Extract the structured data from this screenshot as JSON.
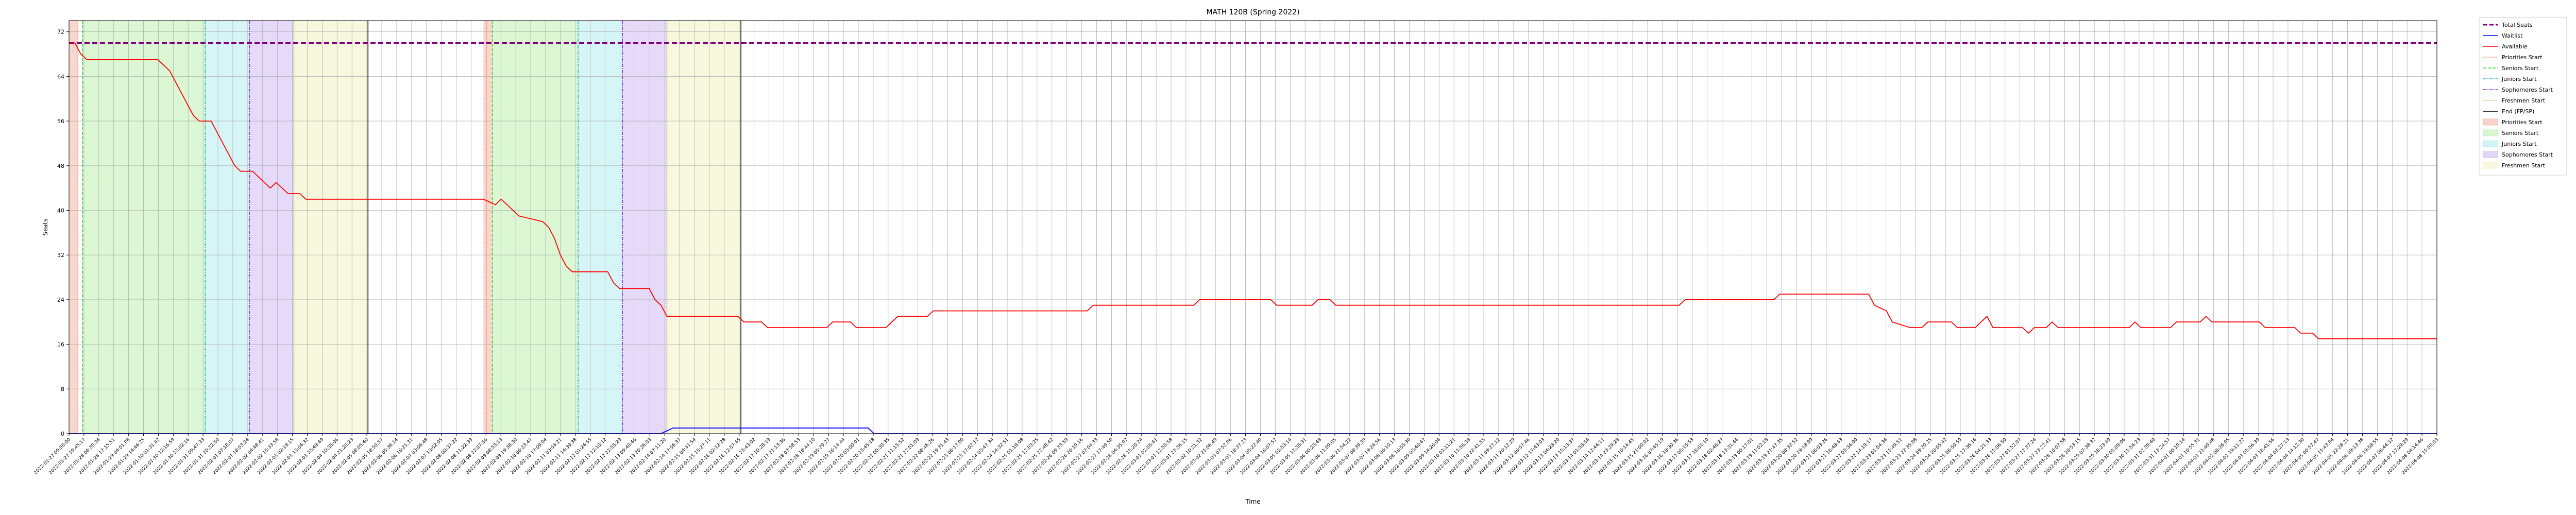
{
  "chart_data": {
    "type": "line",
    "title": "MATH 120B (Spring 2022)",
    "xlabel": "Time",
    "ylabel": "Seats",
    "ylim": [
      0,
      74
    ],
    "xlim": [
      0,
      400
    ],
    "grid": true,
    "legend_position": "outside-right",
    "y_ticks": [
      "0",
      "8",
      "16",
      "24",
      "32",
      "40",
      "48",
      "56",
      "64",
      "72"
    ],
    "x_tick_first": "2022-01-27 09:00:00",
    "x_tick_last": "2022-04-08 15:00:03",
    "x_tick_count": 160,
    "x_unit_note": "sample index along time axis",
    "series": [
      {
        "name": "Total Seats",
        "color": "#800080",
        "style": "dashed",
        "points": [
          [
            0,
            70
          ],
          [
            400,
            70
          ]
        ]
      },
      {
        "name": "Waitlist",
        "color": "#0000ff",
        "style": "solid",
        "points": [
          [
            0,
            0
          ],
          [
            100,
            0
          ],
          [
            102,
            1
          ],
          [
            125,
            1
          ],
          [
            126,
            1
          ],
          [
            127,
            1
          ],
          [
            128,
            1
          ],
          [
            129,
            1
          ],
          [
            130,
            1
          ],
          [
            131,
            1
          ],
          [
            132,
            1
          ],
          [
            133,
            1
          ],
          [
            134,
            1
          ],
          [
            135,
            1
          ],
          [
            136,
            0
          ],
          [
            400,
            0
          ]
        ]
      },
      {
        "name": "Available",
        "color": "#ff0000",
        "style": "solid",
        "points": [
          [
            0,
            70
          ],
          [
            1,
            70
          ],
          [
            1.5,
            69
          ],
          [
            2,
            68
          ],
          [
            3,
            67
          ],
          [
            15,
            67
          ],
          [
            16,
            66
          ],
          [
            17,
            65
          ],
          [
            18,
            63
          ],
          [
            19,
            61
          ],
          [
            20,
            59
          ],
          [
            21,
            57
          ],
          [
            22,
            56
          ],
          [
            24,
            56
          ],
          [
            25,
            54
          ],
          [
            26,
            52
          ],
          [
            27,
            50
          ],
          [
            28,
            48
          ],
          [
            29,
            47
          ],
          [
            31,
            47
          ],
          [
            32,
            46
          ],
          [
            33,
            45
          ],
          [
            34,
            44
          ],
          [
            35,
            45
          ],
          [
            36,
            44
          ],
          [
            37,
            43
          ],
          [
            39,
            43
          ],
          [
            40,
            42
          ],
          [
            50,
            42
          ],
          [
            60,
            42
          ],
          [
            70,
            42
          ],
          [
            72,
            41
          ],
          [
            73,
            42
          ],
          [
            74,
            41
          ],
          [
            75,
            40
          ],
          [
            76,
            39
          ],
          [
            80,
            38
          ],
          [
            81,
            37
          ],
          [
            82,
            35
          ],
          [
            83,
            32
          ],
          [
            84,
            30
          ],
          [
            85,
            29
          ],
          [
            91,
            29
          ],
          [
            92,
            27
          ],
          [
            93,
            26
          ],
          [
            98,
            26
          ],
          [
            99,
            24
          ],
          [
            100,
            23
          ],
          [
            101,
            21
          ],
          [
            110,
            21
          ],
          [
            113,
            21
          ],
          [
            114,
            20
          ],
          [
            117,
            20
          ],
          [
            118,
            19
          ],
          [
            128,
            19
          ],
          [
            129,
            20
          ],
          [
            132,
            20
          ],
          [
            133,
            19
          ],
          [
            138,
            19
          ],
          [
            139,
            20
          ],
          [
            140,
            21
          ],
          [
            145,
            21
          ],
          [
            146,
            22
          ],
          [
            165,
            22
          ],
          [
            172,
            22
          ],
          [
            173,
            23
          ],
          [
            185,
            23
          ],
          [
            190,
            23
          ],
          [
            191,
            24
          ],
          [
            203,
            24
          ],
          [
            204,
            23
          ],
          [
            210,
            23
          ],
          [
            211,
            24
          ],
          [
            213,
            24
          ],
          [
            214,
            23
          ],
          [
            220,
            23
          ],
          [
            240,
            23
          ],
          [
            272,
            23
          ],
          [
            273,
            24
          ],
          [
            285,
            24
          ],
          [
            288,
            24
          ],
          [
            289,
            25
          ],
          [
            295,
            25
          ],
          [
            304,
            25
          ],
          [
            305,
            23
          ],
          [
            307,
            22
          ],
          [
            308,
            20
          ],
          [
            311,
            19
          ],
          [
            313,
            19
          ],
          [
            314,
            20
          ],
          [
            318,
            20
          ],
          [
            319,
            19
          ],
          [
            322,
            19
          ],
          [
            323,
            20
          ],
          [
            324,
            21
          ],
          [
            325,
            19
          ],
          [
            328,
            19
          ],
          [
            330,
            19
          ],
          [
            331,
            18
          ],
          [
            332,
            19
          ],
          [
            334,
            19
          ],
          [
            335,
            20
          ],
          [
            336,
            19
          ],
          [
            348,
            19
          ],
          [
            349,
            20
          ],
          [
            350,
            19
          ],
          [
            355,
            19
          ],
          [
            356,
            20
          ],
          [
            360,
            20
          ],
          [
            361,
            21
          ],
          [
            362,
            20
          ],
          [
            370,
            20
          ],
          [
            371,
            19
          ],
          [
            376,
            19
          ],
          [
            377,
            18
          ],
          [
            379,
            18
          ],
          [
            380,
            17
          ],
          [
            400,
            17
          ]
        ]
      }
    ],
    "vertical_lines": [
      {
        "name": "Priorities Start",
        "color": "#ff7f50",
        "x": 1.5
      },
      {
        "name": "Seniors Start",
        "color": "#32cd32",
        "x": 2.3
      },
      {
        "name": "Juniors Start",
        "color": "#20b2aa",
        "x": 23
      },
      {
        "name": "Sophomores Start",
        "color": "#8a2be2",
        "x": 30.5
      },
      {
        "name": "Freshmen Start",
        "color": "#bdb76b",
        "x": 38
      },
      {
        "name": "End (FP/SP)",
        "color": "#000000",
        "x": 50.5
      },
      {
        "name": "Priorities Start",
        "color": "#ff7f50",
        "x": 70.5
      },
      {
        "name": "Seniors Start",
        "color": "#32cd32",
        "x": 71.5
      },
      {
        "name": "Juniors Start",
        "color": "#20b2aa",
        "x": 86
      },
      {
        "name": "Sophomores Start",
        "color": "#8a2be2",
        "x": 93.5
      },
      {
        "name": "Freshmen Start",
        "color": "#bdb76b",
        "x": 101
      },
      {
        "name": "End (FP/SP)",
        "color": "#000000",
        "x": 113.5
      }
    ],
    "spans": [
      {
        "name": "Priorities Start",
        "color": "#f4b6a6",
        "from": 0,
        "to": 1.5
      },
      {
        "name": "Seniors Start",
        "color": "#bff0b0",
        "from": 2.3,
        "to": 23
      },
      {
        "name": "Juniors Start",
        "color": "#b4ecf0",
        "from": 23,
        "to": 30.5
      },
      {
        "name": "Sophomores Start",
        "color": "#cfbcf2",
        "from": 30.5,
        "to": 38
      },
      {
        "name": "Freshmen Start",
        "color": "#f3f3c4",
        "from": 38,
        "to": 50.5
      },
      {
        "name": "Priorities Start",
        "color": "#f4b6a6",
        "from": 70,
        "to": 71.5
      },
      {
        "name": "Seniors Start",
        "color": "#bff0b0",
        "from": 71.5,
        "to": 86
      },
      {
        "name": "Juniors Start",
        "color": "#b4ecf0",
        "from": 86,
        "to": 93.5
      },
      {
        "name": "Sophomores Start",
        "color": "#cfbcf2",
        "from": 93.5,
        "to": 101
      },
      {
        "name": "Freshmen Start",
        "color": "#f3f3c4",
        "from": 101,
        "to": 113.5
      }
    ],
    "legend": [
      {
        "label": "Total Seats",
        "kind": "line",
        "color": "#800080",
        "dash": "8,4",
        "width": 3
      },
      {
        "label": "Waitlist",
        "kind": "line",
        "color": "#0000ff",
        "dash": "",
        "width": 1.5
      },
      {
        "label": "Available",
        "kind": "line",
        "color": "#ff0000",
        "dash": "",
        "width": 1.5
      },
      {
        "label": "Priorities Start",
        "kind": "line",
        "color": "#ff7f50",
        "dash": "2,2",
        "width": 1.5
      },
      {
        "label": "Seniors Start",
        "kind": "line",
        "color": "#32cd32",
        "dash": "6,3",
        "width": 1.5
      },
      {
        "label": "Juniors Start",
        "kind": "line",
        "color": "#20b2aa",
        "dash": "6,2,2,2",
        "width": 1.5
      },
      {
        "label": "Sophomores Start",
        "kind": "line",
        "color": "#8a2be2",
        "dash": "6,2,2,2",
        "width": 1.5
      },
      {
        "label": "Freshmen Start",
        "kind": "line",
        "color": "#bdb76b",
        "dash": "2,2",
        "width": 1.5
      },
      {
        "label": "End (FP/SP)",
        "kind": "line",
        "color": "#000000",
        "dash": "",
        "width": 1.5
      },
      {
        "label": "Priorities Start",
        "kind": "patch",
        "color": "#f4b6a6"
      },
      {
        "label": "Seniors Start",
        "kind": "patch",
        "color": "#bff0b0"
      },
      {
        "label": "Juniors Start",
        "kind": "patch",
        "color": "#b4ecf0"
      },
      {
        "label": "Sophomores Start",
        "kind": "patch",
        "color": "#cfbcf2"
      },
      {
        "label": "Freshmen Start",
        "kind": "patch",
        "color": "#f3f3c4"
      }
    ]
  }
}
